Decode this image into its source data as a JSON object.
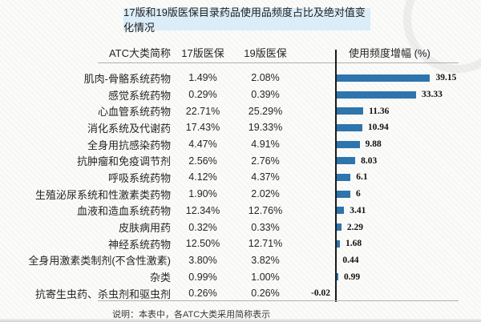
{
  "title": "17版和19版医保目录药品使用品频度占比及绝对值变化情况",
  "table": {
    "headers": {
      "category": "ATC大类简称",
      "v17": "17版医保",
      "v19": "19版医保",
      "growth": "使用频度增幅 (%)"
    }
  },
  "rows": [
    {
      "category": "肌肉-骨骼系统药物",
      "v17": "1.49%",
      "v19": "2.08%",
      "growth": 39.15,
      "growth_label": "39.15"
    },
    {
      "category": "感觉系统药物",
      "v17": "0.29%",
      "v19": "0.39%",
      "growth": 33.33,
      "growth_label": "33.33"
    },
    {
      "category": "心血管系统药物",
      "v17": "22.71%",
      "v19": "25.29%",
      "growth": 11.36,
      "growth_label": "11.36"
    },
    {
      "category": "消化系统及代谢药",
      "v17": "17.43%",
      "v19": "19.33%",
      "growth": 10.94,
      "growth_label": "10.94"
    },
    {
      "category": "全身用抗感染药物",
      "v17": "4.47%",
      "v19": "4.91%",
      "growth": 9.88,
      "growth_label": "9.88"
    },
    {
      "category": "抗肿瘤和免疫调节剂",
      "v17": "2.56%",
      "v19": "2.76%",
      "growth": 8.03,
      "growth_label": "8.03"
    },
    {
      "category": "呼吸系统药物",
      "v17": "4.12%",
      "v19": "4.37%",
      "growth": 6.1,
      "growth_label": "6.1"
    },
    {
      "category": "生殖泌尿系统和性激素类药物",
      "v17": "1.90%",
      "v19": "2.02%",
      "growth": 6,
      "growth_label": "6"
    },
    {
      "category": "血液和造血系统药物",
      "v17": "12.34%",
      "v19": "12.76%",
      "growth": 3.41,
      "growth_label": "3.41"
    },
    {
      "category": "皮肤病用药",
      "v17": "0.32%",
      "v19": "0.33%",
      "growth": 2.29,
      "growth_label": "2.29"
    },
    {
      "category": "神经系统药物",
      "v17": "12.50%",
      "v19": "12.71%",
      "growth": 1.68,
      "growth_label": "1.68"
    },
    {
      "category": "全身用激素类制剂(不含性激素)",
      "v17": "3.80%",
      "v19": "3.82%",
      "growth": 0.44,
      "growth_label": "0.44"
    },
    {
      "category": "杂类",
      "v17": "0.99%",
      "v19": "1.00%",
      "growth": 0.99,
      "growth_label": "0.99"
    },
    {
      "category": "抗寄生虫药、杀虫剂和驱虫剂",
      "v17": "0.26%",
      "v19": "0.26%",
      "growth": -0.02,
      "growth_label": "-0.02"
    }
  ],
  "chart_data": {
    "type": "bar",
    "orientation": "horizontal",
    "title": "17版和19版医保目录药品使用品频度占比及绝对值变化情况",
    "categories": [
      "肌肉-骨骼系统药物",
      "感觉系统药物",
      "心血管系统药物",
      "消化系统及代谢药",
      "全身用抗感染药物",
      "抗肿瘤和免疫调节剂",
      "呼吸系统药物",
      "生殖泌尿系统和性激素类药物",
      "血液和造血系统药物",
      "皮肤病用药",
      "神经系统药物",
      "全身用激素类制剂(不含性激素)",
      "杂类",
      "抗寄生虫药、杀虫剂和驱虫剂"
    ],
    "series": [
      {
        "name": "17版医保",
        "values_pct": [
          1.49,
          0.29,
          22.71,
          17.43,
          4.47,
          2.56,
          4.12,
          1.9,
          12.34,
          0.32,
          12.5,
          3.8,
          0.99,
          0.26
        ]
      },
      {
        "name": "19版医保",
        "values_pct": [
          2.08,
          0.39,
          25.29,
          19.33,
          4.91,
          2.76,
          4.37,
          2.02,
          12.76,
          0.33,
          12.71,
          3.82,
          1.0,
          0.26
        ]
      },
      {
        "name": "使用频度增幅 (%)",
        "values": [
          39.15,
          33.33,
          11.36,
          10.94,
          9.88,
          8.03,
          6.1,
          6,
          3.41,
          2.29,
          1.68,
          0.44,
          0.99,
          -0.02
        ]
      }
    ],
    "xlim": [
      -2,
      45
    ],
    "grid": false,
    "legend": "none",
    "value_labels": true,
    "bar_color": "#2E74AD"
  },
  "footnote": "说明：本表中，各ATC大类采用简称表示",
  "colors": {
    "bar": "#2E74AD",
    "title_background": "#DAEDF8",
    "axis": "#191919",
    "divider": "#B0B0B0",
    "text": "#262626"
  }
}
